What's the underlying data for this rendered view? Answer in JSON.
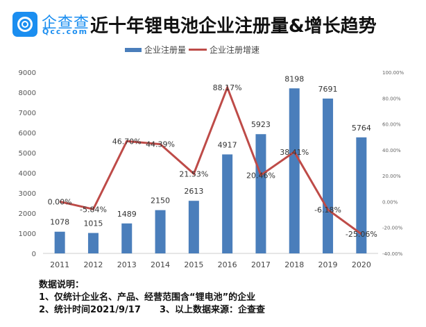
{
  "logo": {
    "name": "企查查",
    "domain": "Qcc.com"
  },
  "title": "近十年锂电池企业注册量&增长趋势",
  "chart_data": {
    "type": "bar+line",
    "title": "近十年锂电池企业注册量&增长趋势",
    "categories": [
      "2011",
      "2012",
      "2013",
      "2014",
      "2015",
      "2016",
      "2017",
      "2018",
      "2019",
      "2020"
    ],
    "series": [
      {
        "name": "企业注册量",
        "type": "bar",
        "axis": "left",
        "color": "#4a7ebb",
        "values": [
          1078,
          1015,
          1489,
          2150,
          2613,
          4917,
          5923,
          8198,
          7691,
          5764
        ],
        "labels": [
          "1078",
          "1015",
          "1489",
          "2150",
          "2613",
          "4917",
          "5923",
          "8198",
          "7691",
          "5764"
        ]
      },
      {
        "name": "企业注册增速",
        "type": "line",
        "axis": "right",
        "color": "#be4b48",
        "values": [
          0.0,
          -5.84,
          46.7,
          44.39,
          21.53,
          88.17,
          20.46,
          38.41,
          -6.18,
          -25.06
        ],
        "labels": [
          "0.00%",
          "-5.84%",
          "46.70%",
          "44.39%",
          "21.53%",
          "88.17%",
          "20.46%",
          "38.41%",
          "-6.18%",
          "-25.06%"
        ]
      }
    ],
    "yleft": {
      "lim": [
        0,
        9000
      ],
      "ticks": [
        "0",
        "1000",
        "2000",
        "3000",
        "4000",
        "5000",
        "6000",
        "7000",
        "8000",
        "9000"
      ]
    },
    "yright": {
      "lim": [
        -40,
        100
      ],
      "ticks": [
        "-40.00%",
        "-20.00%",
        "0.00%",
        "20.00%",
        "40.00%",
        "60.00%",
        "80.00%",
        "100.00%"
      ]
    },
    "legend": "top",
    "grid": false
  },
  "notes": {
    "heading": "数据说明：",
    "line1": "1、仅统计企业名、产品、经营范围含“锂电池”的企业",
    "line2": "2、统计时间2021/9/17      3、以上数据来源：企查查"
  }
}
